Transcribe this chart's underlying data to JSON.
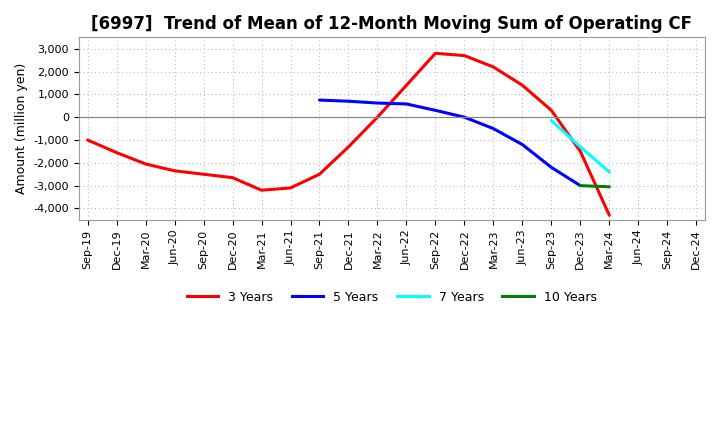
{
  "title": "[6997]  Trend of Mean of 12-Month Moving Sum of Operating CF",
  "ylabel": "Amount (million yen)",
  "ylim": [
    -4500,
    3500
  ],
  "yticks": [
    -4000,
    -3000,
    -2000,
    -1000,
    0,
    1000,
    2000,
    3000
  ],
  "background_color": "#ffffff",
  "plot_bg_color": "#ffffff",
  "series_order": [
    "3years",
    "5years",
    "7years",
    "10years"
  ],
  "series": {
    "3years": {
      "color": "#ff0000",
      "label": "3 Years",
      "x": [
        0,
        1,
        2,
        3,
        4,
        5,
        6,
        7,
        8,
        9,
        10,
        11,
        12,
        13,
        14,
        15,
        16,
        17,
        18
      ],
      "y": [
        -1000,
        -1550,
        -2050,
        -2350,
        -2500,
        -2650,
        -3200,
        -3100,
        -2500,
        -1300,
        0,
        1400,
        2800,
        2700,
        2200,
        1400,
        300,
        -1500,
        -4300
      ]
    },
    "5years": {
      "color": "#0000ff",
      "label": "5 Years",
      "x": [
        8,
        9,
        10,
        11,
        12,
        13,
        14,
        15,
        16,
        17
      ],
      "y": [
        750,
        700,
        620,
        580,
        300,
        0,
        -500,
        -1200,
        -2200,
        -3000
      ]
    },
    "7years": {
      "color": "#00ffff",
      "label": "7 Years",
      "x": [
        16,
        17,
        18
      ],
      "y": [
        -150,
        -1300,
        -2400
      ]
    },
    "10years": {
      "color": "#008000",
      "label": "10 Years",
      "x": [
        17,
        18
      ],
      "y": [
        -3000,
        -3050
      ]
    }
  },
  "xtick_labels": [
    "Sep-19",
    "Dec-19",
    "Mar-20",
    "Jun-20",
    "Sep-20",
    "Dec-20",
    "Mar-21",
    "Jun-21",
    "Sep-21",
    "Dec-21",
    "Mar-22",
    "Jun-22",
    "Sep-22",
    "Dec-22",
    "Mar-23",
    "Jun-23",
    "Sep-23",
    "Dec-23",
    "Mar-24",
    "Jun-24",
    "Sep-24",
    "Dec-24"
  ],
  "line_width": 2.2,
  "title_fontsize": 12,
  "axis_fontsize": 9,
  "tick_fontsize": 8,
  "legend_fontsize": 9,
  "grid_color": "#b0b0b0",
  "zero_line_color": "#888888"
}
